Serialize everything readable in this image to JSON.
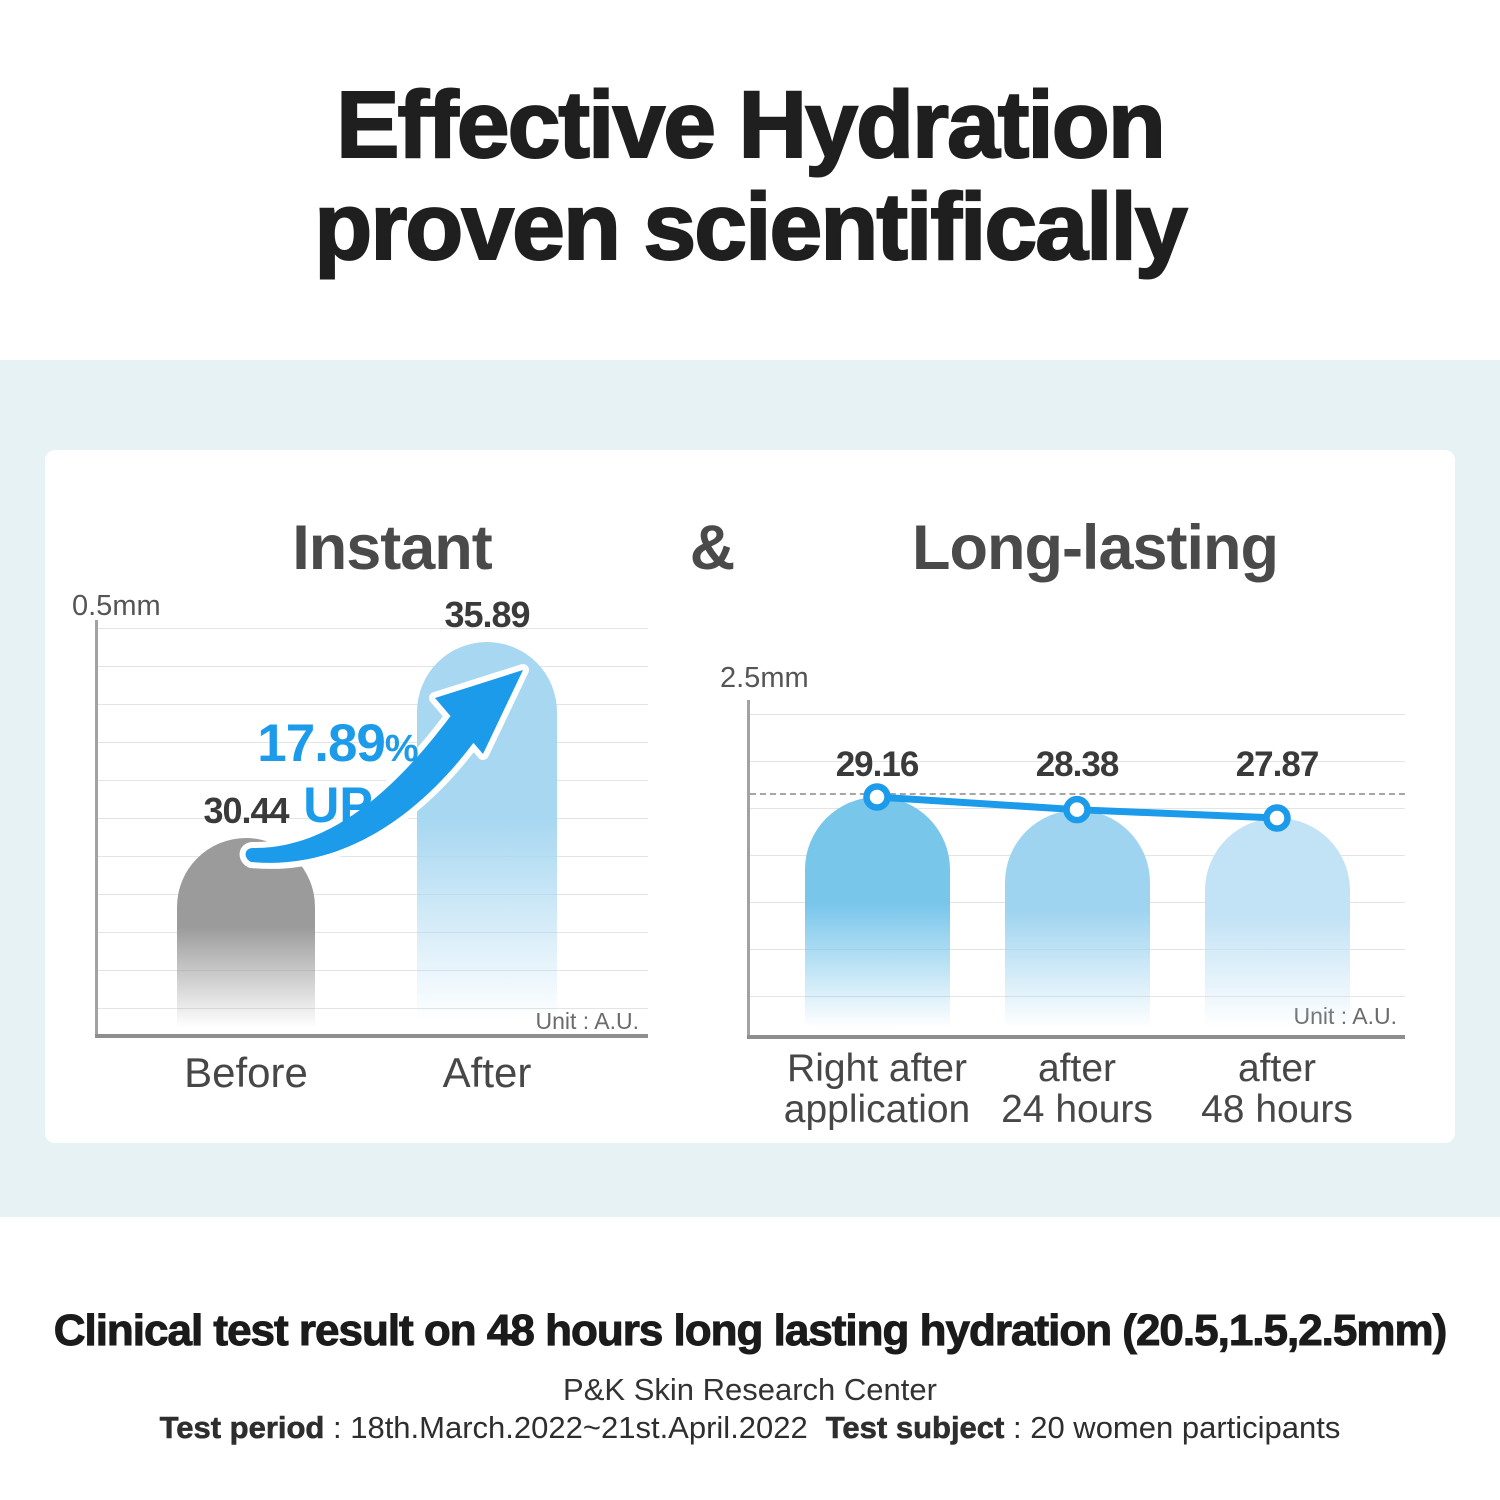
{
  "page": {
    "title_line1": "Effective Hydration",
    "title_line2": "proven scientifically"
  },
  "charts_panel": {
    "left_title": "Instant",
    "ampersand": "&",
    "right_title": "Long-lasting"
  },
  "chart_data": [
    {
      "type": "bar",
      "title": "Instant",
      "axis_label": "0.5mm",
      "unit_note": "Unit : A.U.",
      "categories": [
        "Before",
        "After"
      ],
      "values": [
        30.44,
        35.89
      ],
      "bar_colors": [
        "#9b9b9b",
        "#a7d7f1"
      ],
      "annotation": {
        "percent_value": "17.89",
        "percent_sign": "%",
        "direction": "UP"
      },
      "ylim": [
        25.0,
        36.6
      ],
      "grid": true,
      "legend": "none"
    },
    {
      "type": "bar+line",
      "title": "Long-lasting",
      "axis_label": "2.5mm",
      "unit_note": "Unit : A.U.",
      "categories": [
        [
          "Right after",
          "application"
        ],
        [
          "after",
          "24 hours"
        ],
        [
          "after",
          "48 hours"
        ]
      ],
      "values": [
        29.16,
        28.38,
        27.87
      ],
      "bar_colors": [
        "#79c6eb",
        "#9fd4f0",
        "#c2e2f5"
      ],
      "line_color": "#1b9be9",
      "marker_style": "open-circle",
      "dashed_reference_line": true,
      "ylim": [
        14.5,
        35.1
      ],
      "grid": true,
      "legend": "none"
    }
  ],
  "footer": {
    "headline": "Clinical test result on 48 hours long lasting hydration (20.5,1.5,2.5mm)",
    "org": "P&K Skin Research Center",
    "test_period_label": "Test period",
    "test_period_value": " : 18th.March.2022~21st.April.2022",
    "test_subject_label": "Test subject",
    "test_subject_value": " : 20 women participants"
  },
  "colors": {
    "accent_blue": "#1b9be9",
    "background_tint": "#e7f2f5",
    "card": "#ffffff",
    "grid": "#e4e4e4",
    "axis": "#9a9a9a",
    "title_text": "#1f1f1f"
  }
}
